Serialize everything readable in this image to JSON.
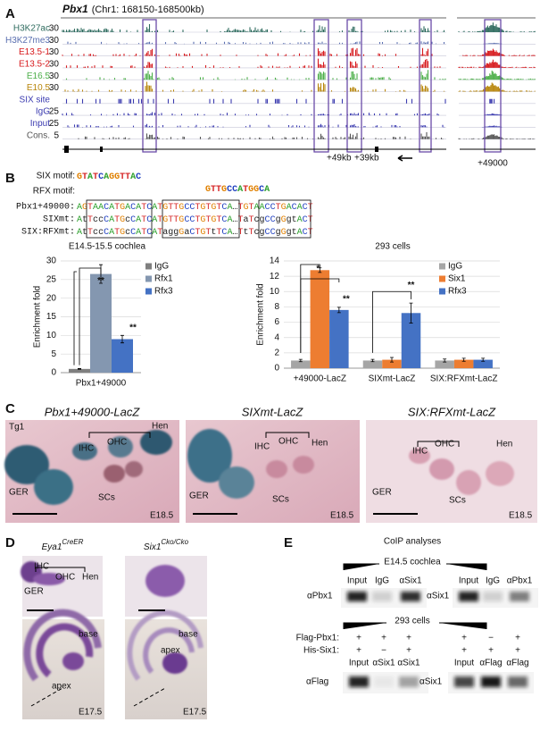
{
  "panel_labels": [
    "A",
    "B",
    "C",
    "D",
    "E"
  ],
  "panel_a": {
    "title": "Pbx1",
    "subtitle": "(Chr1: 168150-168500kb)",
    "tracks": [
      {
        "name": "H3K27ac",
        "scale": "30",
        "color": "#2e6b5e"
      },
      {
        "name": "H3K27me3",
        "scale": "30",
        "color": "#5a6fb0"
      },
      {
        "name": "E13.5-1",
        "scale": "30",
        "color": "#d7191c"
      },
      {
        "name": "E13.5-2",
        "scale": "30",
        "color": "#d7191c"
      },
      {
        "name": "E16.5",
        "scale": "30",
        "color": "#4daf4a"
      },
      {
        "name": "E10.5",
        "scale": "30",
        "color": "#b8860b"
      },
      {
        "name": "SIX site",
        "color": "#3b3bb0"
      },
      {
        "name": "IgG",
        "scale": "25",
        "color": "#3b3bb0"
      },
      {
        "name": "Input",
        "scale": "25",
        "color": "#3b3bb0"
      },
      {
        "name": "Cons.",
        "scale": "5",
        "color": "#555555"
      }
    ],
    "annotations": [
      "+49kb",
      "+39kb",
      "+49000"
    ]
  },
  "panel_b": {
    "motifs": [
      {
        "label": "SIX motif:",
        "logo": "GTATCAGGTTAC"
      },
      {
        "label": "RFX motif:",
        "logo": "GTTGCCATGGCA"
      }
    ],
    "sequences": [
      {
        "name": "Pbx1+49000:",
        "seq": "AGTAACATGACATCATGTTGCCTGTGTCA…TGTAACCTGACACT"
      },
      {
        "name": "SIXmt:",
        "seq": "AtTccCATGcCATCATGTTGCCTGTGTCA…TaTcgCCgGgtACT"
      },
      {
        "name": "SIX:RFXmt:",
        "seq": "AtTccCATGcCATCATaggGaCTGTtTCA…TtTcgCCgGgtACT"
      }
    ]
  },
  "chart_data": [
    {
      "type": "bar",
      "title": "E14.5-15.5 cochlea",
      "y_label": "Enrichment fold",
      "categories": [
        "Pbx1+49000"
      ],
      "series": [
        {
          "name": "IgG",
          "color": "#7f7f7f",
          "values": [
            1
          ],
          "errors": [
            0.1
          ]
        },
        {
          "name": "Rfx1",
          "color": "#8497b0",
          "values": [
            26.5
          ],
          "errors": [
            2.5
          ]
        },
        {
          "name": "Rfx3",
          "color": "#4472c4",
          "values": [
            9
          ],
          "errors": [
            1
          ]
        }
      ],
      "ylim": [
        0,
        30
      ],
      "yticks": [
        0,
        5,
        10,
        15,
        20,
        25,
        30
      ],
      "grid": true,
      "legend": "right",
      "annotations": [
        "**",
        "**"
      ]
    },
    {
      "type": "bar",
      "title": "293 cells",
      "y_label": "Enrichment fold",
      "categories": [
        "+49000-LacZ",
        "SIXmt-LacZ",
        "SIX:RFXmt-LacZ"
      ],
      "series": [
        {
          "name": "IgG",
          "color": "#a5a5a5",
          "values": [
            1,
            1,
            1
          ],
          "errors": [
            0.15,
            0.15,
            0.2
          ]
        },
        {
          "name": "Six1",
          "color": "#ed7d31",
          "values": [
            12.8,
            1.1,
            1.1
          ],
          "errors": [
            0.3,
            0.3,
            0.2
          ]
        },
        {
          "name": "Rfx3",
          "color": "#4472c4",
          "values": [
            7.6,
            7.2,
            1.1
          ],
          "errors": [
            0.35,
            1.3,
            0.2
          ]
        }
      ],
      "ylim": [
        0,
        14
      ],
      "yticks": [
        0,
        2,
        4,
        6,
        8,
        10,
        12,
        14
      ],
      "grid": true,
      "legend": "top-right",
      "annotations": [
        "*",
        "**",
        "**"
      ]
    }
  ],
  "panel_c": {
    "images": [
      {
        "title": "Pbx1+49000-LacZ",
        "labels": [
          "Tg1",
          "IHC",
          "OHC",
          "Hen",
          "GER",
          "SCs",
          "E18.5"
        ]
      },
      {
        "title": "SIXmt-LacZ",
        "labels": [
          "IHC",
          "OHC",
          "Hen",
          "GER",
          "SCs",
          "E18.5"
        ]
      },
      {
        "title": "SIX:RFXmt-LacZ",
        "labels": [
          "IHC",
          "OHC",
          "Hen",
          "GER",
          "SCs",
          "E18.5"
        ]
      }
    ]
  },
  "panel_d": {
    "columns": [
      {
        "title": "Eya1",
        "superscript": "CreER",
        "labels": [
          "IHC",
          "OHC",
          "Hen",
          "GER",
          "base",
          "apex",
          "E17.5"
        ]
      },
      {
        "title": "Six1",
        "superscript": "Cko/Cko",
        "labels": [
          "base",
          "apex",
          "E17.5"
        ]
      }
    ]
  },
  "panel_e": {
    "title": "CoIP analyses",
    "top": {
      "sample": "E14.5 cochlea",
      "blots": [
        {
          "antibody": "αPbx1",
          "lanes": [
            "Input",
            "IgG",
            "αSix1"
          ]
        },
        {
          "antibody": "αSix1",
          "lanes": [
            "Input",
            "IgG",
            "αPbx1"
          ]
        }
      ]
    },
    "bottom": {
      "sample": "293 cells",
      "rows": [
        "Flag-Pbx1:",
        "His-Six1:"
      ],
      "blots": [
        {
          "antibody": "αFlag",
          "lanes": [
            "Input",
            "αSix1",
            "αSix1"
          ],
          "flag": [
            "+",
            "+",
            "+"
          ],
          "his": [
            "+",
            "−",
            "+"
          ]
        },
        {
          "antibody": "αSix1",
          "lanes": [
            "Input",
            "αFlag",
            "αFlag"
          ],
          "flag": [
            "+",
            "−",
            "+"
          ],
          "his": [
            "+",
            "+",
            "+"
          ]
        }
      ]
    }
  }
}
